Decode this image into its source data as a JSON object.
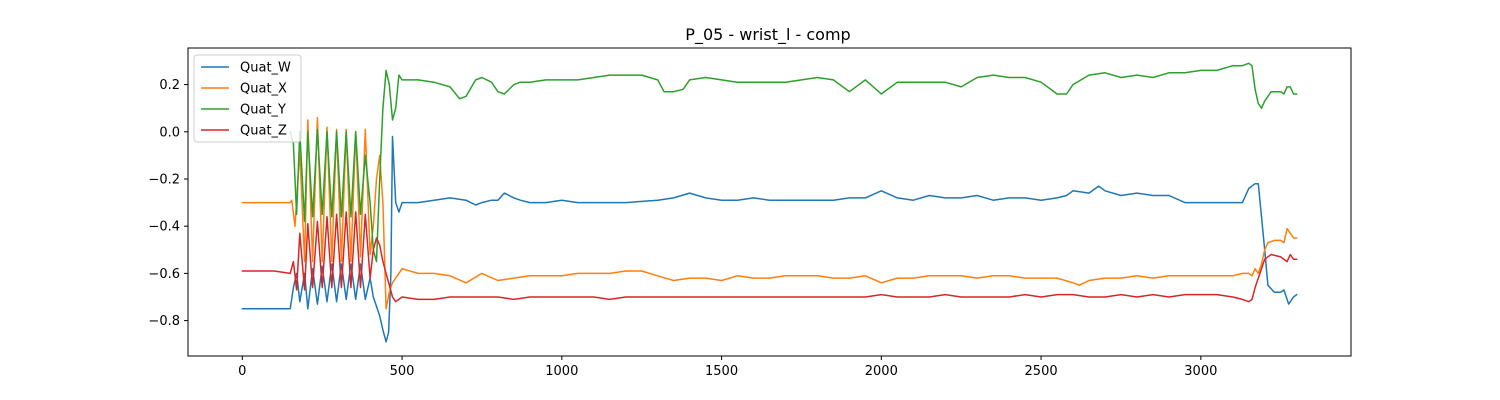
{
  "chart_data": {
    "type": "line",
    "title": "P_05 - wrist_l - comp",
    "xlabel": "",
    "ylabel": "",
    "xlim": [
      -170,
      3470
    ],
    "ylim": [
      -0.95,
      0.355
    ],
    "x_ticks": [
      0,
      500,
      1000,
      1500,
      2000,
      2500,
      3000
    ],
    "y_ticks": [
      0.2,
      0.0,
      -0.2,
      -0.4,
      -0.6,
      -0.8
    ],
    "y_tick_labels": [
      "0.2",
      "0.0",
      "−0.2",
      "−0.4",
      "−0.6",
      "−0.8"
    ],
    "grid": false,
    "legend_position": "top-left",
    "series": [
      {
        "name": "Quat_W",
        "color": "#1f77b4",
        "x": [
          0,
          100,
          150,
          160,
          170,
          180,
          195,
          205,
          220,
          235,
          250,
          265,
          280,
          295,
          310,
          325,
          340,
          355,
          370,
          385,
          400,
          410,
          420,
          430,
          440,
          450,
          458,
          465,
          470,
          480,
          490,
          500,
          520,
          550,
          600,
          650,
          700,
          730,
          750,
          780,
          800,
          820,
          850,
          870,
          900,
          950,
          1000,
          1050,
          1100,
          1200,
          1300,
          1350,
          1400,
          1450,
          1500,
          1550,
          1600,
          1650,
          1700,
          1750,
          1800,
          1850,
          1900,
          1950,
          2000,
          2050,
          2100,
          2150,
          2200,
          2250,
          2300,
          2350,
          2400,
          2450,
          2500,
          2550,
          2580,
          2600,
          2650,
          2680,
          2700,
          2750,
          2800,
          2850,
          2900,
          2950,
          3000,
          3050,
          3100,
          3130,
          3150,
          3170,
          3180,
          3200,
          3210,
          3230,
          3250,
          3260,
          3275,
          3290,
          3300
        ],
        "y": [
          -0.75,
          -0.75,
          -0.75,
          -0.66,
          -0.6,
          -0.72,
          -0.6,
          -0.75,
          -0.58,
          -0.73,
          -0.57,
          -0.72,
          -0.56,
          -0.72,
          -0.56,
          -0.71,
          -0.56,
          -0.71,
          -0.56,
          -0.71,
          -0.62,
          -0.7,
          -0.74,
          -0.78,
          -0.84,
          -0.89,
          -0.85,
          -0.6,
          -0.02,
          -0.3,
          -0.34,
          -0.3,
          -0.3,
          -0.3,
          -0.29,
          -0.28,
          -0.29,
          -0.31,
          -0.3,
          -0.29,
          -0.29,
          -0.26,
          -0.28,
          -0.29,
          -0.3,
          -0.3,
          -0.29,
          -0.3,
          -0.3,
          -0.3,
          -0.29,
          -0.28,
          -0.26,
          -0.28,
          -0.29,
          -0.29,
          -0.28,
          -0.29,
          -0.29,
          -0.29,
          -0.29,
          -0.29,
          -0.28,
          -0.28,
          -0.25,
          -0.28,
          -0.29,
          -0.27,
          -0.28,
          -0.28,
          -0.27,
          -0.29,
          -0.28,
          -0.28,
          -0.29,
          -0.28,
          -0.27,
          -0.25,
          -0.26,
          -0.23,
          -0.25,
          -0.27,
          -0.26,
          -0.27,
          -0.27,
          -0.3,
          -0.3,
          -0.3,
          -0.3,
          -0.3,
          -0.24,
          -0.22,
          -0.22,
          -0.5,
          -0.65,
          -0.68,
          -0.68,
          -0.67,
          -0.73,
          -0.7,
          -0.69
        ]
      },
      {
        "name": "Quat_X",
        "color": "#ff7f0e",
        "x": [
          0,
          100,
          150,
          155,
          165,
          180,
          195,
          205,
          220,
          235,
          250,
          265,
          280,
          295,
          310,
          325,
          340,
          355,
          370,
          385,
          400,
          410,
          420,
          430,
          440,
          450,
          460,
          470,
          480,
          500,
          550,
          600,
          650,
          700,
          750,
          800,
          850,
          900,
          950,
          1000,
          1050,
          1100,
          1150,
          1200,
          1250,
          1300,
          1350,
          1400,
          1450,
          1500,
          1550,
          1600,
          1650,
          1700,
          1750,
          1800,
          1850,
          1900,
          1950,
          2000,
          2050,
          2100,
          2150,
          2200,
          2250,
          2300,
          2350,
          2400,
          2450,
          2500,
          2550,
          2600,
          2620,
          2650,
          2700,
          2750,
          2800,
          2850,
          2900,
          2950,
          3000,
          3050,
          3100,
          3130,
          3150,
          3160,
          3170,
          3180,
          3190,
          3200,
          3210,
          3230,
          3250,
          3260,
          3270,
          3280,
          3290,
          3300
        ],
        "y": [
          -0.3,
          -0.3,
          -0.3,
          -0.29,
          -0.4,
          -0.08,
          -0.55,
          0.05,
          -0.55,
          0.06,
          -0.55,
          0.02,
          -0.55,
          0.01,
          -0.55,
          0.01,
          -0.55,
          0.0,
          -0.53,
          0.01,
          -0.52,
          -0.4,
          -0.2,
          -0.1,
          -0.3,
          -0.75,
          -0.68,
          -0.64,
          -0.62,
          -0.58,
          -0.6,
          -0.6,
          -0.61,
          -0.64,
          -0.6,
          -0.63,
          -0.62,
          -0.61,
          -0.61,
          -0.61,
          -0.6,
          -0.6,
          -0.6,
          -0.59,
          -0.59,
          -0.61,
          -0.63,
          -0.62,
          -0.62,
          -0.63,
          -0.61,
          -0.62,
          -0.62,
          -0.61,
          -0.61,
          -0.61,
          -0.62,
          -0.62,
          -0.61,
          -0.64,
          -0.62,
          -0.62,
          -0.61,
          -0.61,
          -0.61,
          -0.62,
          -0.61,
          -0.61,
          -0.62,
          -0.62,
          -0.62,
          -0.64,
          -0.65,
          -0.63,
          -0.62,
          -0.62,
          -0.61,
          -0.62,
          -0.61,
          -0.61,
          -0.61,
          -0.61,
          -0.61,
          -0.6,
          -0.6,
          -0.61,
          -0.58,
          -0.6,
          -0.56,
          -0.5,
          -0.47,
          -0.46,
          -0.46,
          -0.47,
          -0.41,
          -0.43,
          -0.45,
          -0.45
        ]
      },
      {
        "name": "Quat_Y",
        "color": "#2ca02c",
        "x": [
          150,
          160,
          170,
          180,
          195,
          205,
          220,
          235,
          250,
          265,
          280,
          295,
          310,
          325,
          340,
          355,
          370,
          385,
          400,
          410,
          420,
          430,
          440,
          450,
          460,
          470,
          480,
          490,
          500,
          520,
          550,
          600,
          650,
          680,
          700,
          730,
          750,
          780,
          800,
          820,
          850,
          870,
          900,
          950,
          1000,
          1050,
          1100,
          1150,
          1200,
          1250,
          1300,
          1320,
          1350,
          1380,
          1400,
          1450,
          1500,
          1550,
          1600,
          1650,
          1700,
          1750,
          1800,
          1850,
          1900,
          1950,
          2000,
          2050,
          2100,
          2150,
          2200,
          2250,
          2300,
          2350,
          2400,
          2450,
          2500,
          2550,
          2580,
          2600,
          2650,
          2700,
          2750,
          2800,
          2850,
          2900,
          2950,
          3000,
          3050,
          3100,
          3130,
          3150,
          3160,
          3170,
          3180,
          3190,
          3200,
          3220,
          3250,
          3260,
          3270,
          3280,
          3290,
          3300
        ],
        "y": [
          0.0,
          -0.05,
          -0.35,
          0.0,
          -0.38,
          0.0,
          -0.36,
          0.01,
          -0.35,
          0.0,
          -0.36,
          0.0,
          -0.36,
          0.0,
          -0.36,
          0.0,
          -0.35,
          -0.1,
          -0.3,
          -0.5,
          -0.55,
          -0.2,
          0.1,
          0.26,
          0.2,
          0.05,
          0.1,
          0.24,
          0.22,
          0.22,
          0.22,
          0.21,
          0.19,
          0.14,
          0.15,
          0.22,
          0.23,
          0.21,
          0.17,
          0.16,
          0.2,
          0.21,
          0.21,
          0.22,
          0.22,
          0.22,
          0.23,
          0.24,
          0.24,
          0.24,
          0.22,
          0.17,
          0.17,
          0.18,
          0.22,
          0.23,
          0.22,
          0.21,
          0.21,
          0.21,
          0.21,
          0.22,
          0.23,
          0.22,
          0.17,
          0.22,
          0.16,
          0.21,
          0.21,
          0.21,
          0.21,
          0.19,
          0.23,
          0.24,
          0.23,
          0.23,
          0.21,
          0.16,
          0.16,
          0.2,
          0.24,
          0.25,
          0.23,
          0.24,
          0.23,
          0.25,
          0.25,
          0.26,
          0.26,
          0.28,
          0.28,
          0.29,
          0.28,
          0.18,
          0.12,
          0.1,
          0.13,
          0.17,
          0.17,
          0.16,
          0.19,
          0.19,
          0.16,
          0.16
        ]
      },
      {
        "name": "Quat_Z",
        "color": "#d62728",
        "x": [
          0,
          50,
          100,
          150,
          160,
          170,
          180,
          195,
          205,
          220,
          235,
          250,
          265,
          280,
          295,
          310,
          325,
          340,
          355,
          370,
          385,
          400,
          410,
          420,
          430,
          440,
          450,
          460,
          470,
          480,
          500,
          550,
          600,
          650,
          700,
          750,
          800,
          850,
          900,
          950,
          1000,
          1050,
          1100,
          1150,
          1200,
          1250,
          1300,
          1350,
          1400,
          1450,
          1500,
          1550,
          1600,
          1650,
          1700,
          1750,
          1800,
          1850,
          1900,
          1950,
          2000,
          2050,
          2100,
          2150,
          2200,
          2250,
          2300,
          2350,
          2400,
          2450,
          2500,
          2550,
          2600,
          2650,
          2700,
          2750,
          2800,
          2850,
          2900,
          2950,
          3000,
          3050,
          3100,
          3130,
          3150,
          3160,
          3170,
          3180,
          3190,
          3200,
          3220,
          3250,
          3270,
          3280,
          3290,
          3300
        ],
        "y": [
          -0.59,
          -0.59,
          -0.59,
          -0.6,
          -0.55,
          -0.67,
          -0.43,
          -0.67,
          -0.39,
          -0.66,
          -0.38,
          -0.66,
          -0.36,
          -0.66,
          -0.35,
          -0.66,
          -0.34,
          -0.66,
          -0.34,
          -0.66,
          -0.35,
          -0.62,
          -0.5,
          -0.45,
          -0.48,
          -0.55,
          -0.6,
          -0.65,
          -0.7,
          -0.72,
          -0.7,
          -0.71,
          -0.71,
          -0.7,
          -0.7,
          -0.7,
          -0.7,
          -0.71,
          -0.7,
          -0.7,
          -0.7,
          -0.7,
          -0.7,
          -0.71,
          -0.7,
          -0.7,
          -0.7,
          -0.7,
          -0.7,
          -0.7,
          -0.7,
          -0.7,
          -0.7,
          -0.7,
          -0.7,
          -0.7,
          -0.7,
          -0.7,
          -0.7,
          -0.7,
          -0.69,
          -0.7,
          -0.7,
          -0.7,
          -0.69,
          -0.7,
          -0.7,
          -0.7,
          -0.7,
          -0.69,
          -0.7,
          -0.69,
          -0.69,
          -0.7,
          -0.7,
          -0.69,
          -0.7,
          -0.69,
          -0.7,
          -0.69,
          -0.69,
          -0.69,
          -0.7,
          -0.71,
          -0.72,
          -0.71,
          -0.66,
          -0.62,
          -0.58,
          -0.54,
          -0.52,
          -0.53,
          -0.55,
          -0.52,
          -0.54,
          -0.54
        ]
      }
    ]
  }
}
